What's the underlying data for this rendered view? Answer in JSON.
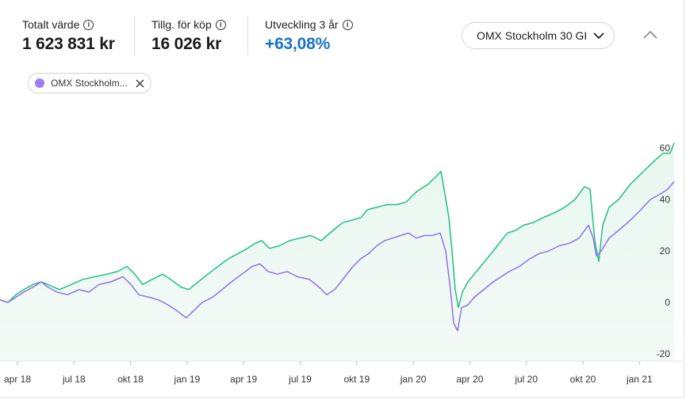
{
  "stats": {
    "total_label": "Totalt värde",
    "total_value": "1 623 831 kr",
    "available_label": "Tillg. för köp",
    "available_value": "16 026 kr",
    "change_label": "Utveckling 3 år",
    "change_value": "+63,08%"
  },
  "benchmark_select": {
    "value": "OMX Stockholm 30 GI"
  },
  "chip": {
    "label": "OMX Stockholm...",
    "color": "#9b7ff0"
  },
  "colors": {
    "portfolio": "#1fbf83",
    "benchmark": "#8f72e8",
    "change": "#1a73c9"
  },
  "chart_data": {
    "type": "line",
    "x_ticks": [
      "apr 18",
      "jul 18",
      "okt 18",
      "jan 19",
      "apr 19",
      "jul 19",
      "okt 19",
      "jan 20",
      "apr 20",
      "jul 20",
      "okt 20",
      "jan 21"
    ],
    "y_ticks": [
      60,
      40,
      20,
      0,
      -20
    ],
    "ylim": [
      -20,
      62
    ],
    "grid": false,
    "series": [
      {
        "color": "#1fbf83",
        "area": true,
        "points": [
          [
            0,
            1
          ],
          [
            10,
            0
          ],
          [
            20,
            3
          ],
          [
            30,
            5
          ],
          [
            42,
            7
          ],
          [
            52,
            8
          ],
          [
            60,
            7
          ],
          [
            75,
            5
          ],
          [
            90,
            7
          ],
          [
            105,
            9
          ],
          [
            120,
            10
          ],
          [
            135,
            11
          ],
          [
            148,
            12
          ],
          [
            160,
            14
          ],
          [
            170,
            11
          ],
          [
            180,
            7
          ],
          [
            192,
            9
          ],
          [
            205,
            11
          ],
          [
            215,
            9
          ],
          [
            228,
            6
          ],
          [
            238,
            5
          ],
          [
            250,
            8
          ],
          [
            262,
            11
          ],
          [
            275,
            14
          ],
          [
            288,
            17
          ],
          [
            300,
            19
          ],
          [
            312,
            21
          ],
          [
            322,
            23
          ],
          [
            330,
            24
          ],
          [
            340,
            21
          ],
          [
            352,
            22
          ],
          [
            365,
            24
          ],
          [
            378,
            25
          ],
          [
            392,
            26
          ],
          [
            405,
            24
          ],
          [
            420,
            28
          ],
          [
            432,
            31
          ],
          [
            444,
            32
          ],
          [
            455,
            33
          ],
          [
            463,
            36
          ],
          [
            475,
            37
          ],
          [
            488,
            38
          ],
          [
            500,
            38
          ],
          [
            512,
            39
          ],
          [
            525,
            43
          ],
          [
            540,
            46
          ],
          [
            550,
            49
          ],
          [
            556,
            51
          ],
          [
            560,
            44
          ],
          [
            566,
            33
          ],
          [
            570,
            20
          ],
          [
            574,
            5
          ],
          [
            578,
            -2
          ],
          [
            583,
            4
          ],
          [
            590,
            8
          ],
          [
            598,
            11
          ],
          [
            606,
            14
          ],
          [
            614,
            17
          ],
          [
            622,
            20
          ],
          [
            632,
            24
          ],
          [
            640,
            27
          ],
          [
            650,
            28
          ],
          [
            660,
            30
          ],
          [
            672,
            31
          ],
          [
            685,
            33
          ],
          [
            700,
            35
          ],
          [
            712,
            37
          ],
          [
            725,
            40
          ],
          [
            737,
            45
          ],
          [
            744,
            44
          ],
          [
            750,
            24
          ],
          [
            755,
            16
          ],
          [
            760,
            30
          ],
          [
            768,
            37
          ],
          [
            780,
            40
          ],
          [
            795,
            46
          ],
          [
            805,
            49
          ],
          [
            815,
            52
          ],
          [
            825,
            55
          ],
          [
            836,
            58
          ],
          [
            845,
            58
          ],
          [
            850,
            62
          ]
        ]
      },
      {
        "color": "#8f72e8",
        "area": false,
        "points": [
          [
            0,
            1
          ],
          [
            10,
            0
          ],
          [
            20,
            2
          ],
          [
            30,
            4
          ],
          [
            42,
            6
          ],
          [
            52,
            8
          ],
          [
            60,
            6
          ],
          [
            72,
            4
          ],
          [
            85,
            3
          ],
          [
            100,
            5
          ],
          [
            112,
            4
          ],
          [
            125,
            7
          ],
          [
            140,
            8
          ],
          [
            155,
            10
          ],
          [
            165,
            7
          ],
          [
            175,
            3
          ],
          [
            188,
            2
          ],
          [
            200,
            1
          ],
          [
            212,
            -1
          ],
          [
            222,
            -3
          ],
          [
            235,
            -6
          ],
          [
            245,
            -3
          ],
          [
            255,
            0
          ],
          [
            268,
            2
          ],
          [
            280,
            5
          ],
          [
            292,
            8
          ],
          [
            305,
            11
          ],
          [
            318,
            14
          ],
          [
            328,
            15
          ],
          [
            338,
            12
          ],
          [
            350,
            11
          ],
          [
            362,
            12
          ],
          [
            375,
            10
          ],
          [
            390,
            9
          ],
          [
            402,
            6
          ],
          [
            412,
            3
          ],
          [
            422,
            5
          ],
          [
            435,
            10
          ],
          [
            445,
            14
          ],
          [
            455,
            17
          ],
          [
            465,
            19
          ],
          [
            475,
            22
          ],
          [
            485,
            24
          ],
          [
            495,
            25
          ],
          [
            505,
            26
          ],
          [
            515,
            27
          ],
          [
            525,
            25
          ],
          [
            535,
            26
          ],
          [
            545,
            26
          ],
          [
            555,
            27
          ],
          [
            562,
            20
          ],
          [
            568,
            5
          ],
          [
            572,
            -8
          ],
          [
            577,
            -11
          ],
          [
            582,
            -2
          ],
          [
            590,
            -1
          ],
          [
            598,
            2
          ],
          [
            606,
            4
          ],
          [
            614,
            6
          ],
          [
            622,
            8
          ],
          [
            632,
            10
          ],
          [
            642,
            12
          ],
          [
            655,
            14
          ],
          [
            668,
            17
          ],
          [
            680,
            19
          ],
          [
            692,
            20
          ],
          [
            705,
            22
          ],
          [
            718,
            23
          ],
          [
            730,
            25
          ],
          [
            742,
            30
          ],
          [
            748,
            25
          ],
          [
            752,
            18
          ],
          [
            758,
            20
          ],
          [
            768,
            25
          ],
          [
            780,
            28
          ],
          [
            795,
            32
          ],
          [
            808,
            36
          ],
          [
            820,
            40
          ],
          [
            832,
            42
          ],
          [
            842,
            44
          ],
          [
            850,
            47
          ]
        ]
      }
    ]
  }
}
